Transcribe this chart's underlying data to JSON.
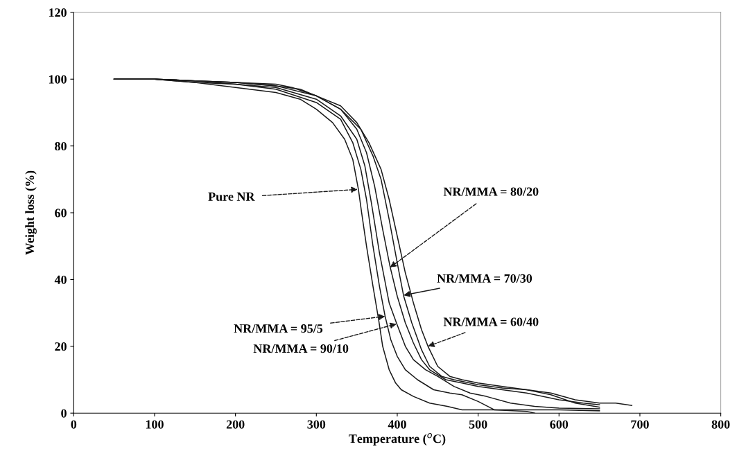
{
  "chart_data": {
    "type": "line",
    "xlabel": "Temperature ($^{o}$C)",
    "ylabel": "Weight loss (%)",
    "xlim": [
      0,
      800
    ],
    "xticks": [
      0,
      100,
      200,
      300,
      400,
      500,
      600,
      700,
      800
    ],
    "ylim": [
      0,
      120
    ],
    "yticks": [
      0,
      20,
      40,
      60,
      80,
      100,
      120
    ],
    "grid": false,
    "legend": false,
    "marker": "none",
    "line_style": "solid",
    "series": [
      {
        "color": "#1a1a1a",
        "x": [
          50,
          100,
          150,
          200,
          250,
          280,
          300,
          320,
          335,
          345,
          352,
          356,
          362,
          370,
          377,
          382,
          390,
          398,
          405,
          420,
          440,
          462,
          480,
          520,
          560,
          570
        ],
        "values": [
          100,
          100,
          99,
          97.5,
          96,
          94,
          91,
          87,
          82,
          76,
          67,
          60,
          50,
          38,
          28,
          20,
          13,
          9,
          7,
          5,
          3,
          2,
          1,
          1,
          0.5,
          0
        ]
      },
      {
        "color": "#1a1a1a",
        "x": [
          50,
          100,
          150,
          200,
          250,
          300,
          330,
          345,
          355,
          362,
          370,
          378,
          385,
          392,
          400,
          410,
          425,
          445,
          465,
          480,
          500,
          520,
          560,
          600,
          650
        ],
        "values": [
          100,
          100,
          99,
          98.5,
          97,
          93,
          88,
          81,
          73,
          64,
          50,
          38,
          29,
          22,
          17,
          13,
          10,
          7,
          6,
          5.5,
          3.5,
          1,
          1,
          1,
          0.7
        ]
      },
      {
        "color": "#1a1a1a",
        "x": [
          50,
          100,
          150,
          200,
          250,
          300,
          330,
          350,
          360,
          368,
          378,
          390,
          399,
          410,
          420,
          435,
          450,
          470,
          490,
          510,
          540,
          570,
          600,
          650
        ],
        "values": [
          100,
          100,
          99.5,
          98.5,
          97.5,
          94,
          89,
          82,
          74,
          63,
          48,
          33,
          27,
          20,
          16,
          13,
          11,
          8,
          6,
          5,
          3,
          2,
          1.5,
          1.3
        ]
      },
      {
        "color": "#1a1a1a",
        "x": [
          50,
          100,
          150,
          200,
          250,
          300,
          330,
          350,
          362,
          372,
          382,
          391,
          400,
          410,
          420,
          430,
          440,
          460,
          480,
          500,
          530,
          560,
          600,
          630,
          650
        ],
        "values": [
          100,
          100,
          99.5,
          99,
          98,
          95,
          91,
          85,
          78,
          68,
          55,
          44,
          35,
          27,
          21,
          16,
          13,
          10,
          9,
          8,
          7,
          6,
          4,
          3,
          2.5
        ]
      },
      {
        "color": "#1a1a1a",
        "x": [
          50,
          100,
          150,
          200,
          250,
          280,
          300,
          330,
          355,
          370,
          380,
          390,
          400,
          408,
          418,
          430,
          440,
          455,
          470,
          500,
          530,
          560,
          590,
          620,
          650
        ],
        "values": [
          100,
          100,
          99.5,
          99,
          98,
          97,
          95,
          91,
          85,
          77,
          70,
          58,
          45,
          35,
          27,
          19,
          14,
          11,
          10,
          8.5,
          7.5,
          7,
          5.5,
          3,
          1.8
        ]
      },
      {
        "color": "#1a1a1a",
        "x": [
          50,
          100,
          150,
          200,
          250,
          270,
          300,
          330,
          350,
          365,
          380,
          390,
          400,
          410,
          420,
          430,
          438,
          450,
          465,
          480,
          500,
          530,
          560,
          590,
          620,
          650,
          670,
          690
        ],
        "values": [
          100,
          100,
          99.5,
          99,
          98.5,
          97.5,
          95,
          92,
          87,
          81,
          73,
          64,
          53,
          42,
          33,
          25,
          20,
          14,
          11,
          10,
          9,
          8,
          7,
          6,
          4,
          3,
          3,
          2.3
        ]
      }
    ],
    "annotations": [
      {
        "text": "Pure NR",
        "x": 351,
        "y": 67
      },
      {
        "text": "NR/MMA = 80/20",
        "x": 391,
        "y": 43.6
      },
      {
        "text": "NR/MMA = 70/30",
        "x": 408,
        "y": 35.3
      },
      {
        "text": "NR/MMA = 60/40",
        "x": 438,
        "y": 20
      },
      {
        "text": "NR/MMA = 95/5",
        "x": 385,
        "y": 29
      },
      {
        "text": "NR/MMA = 90/10",
        "x": 399,
        "y": 26.7
      }
    ]
  }
}
